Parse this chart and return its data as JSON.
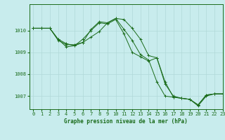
{
  "title": "Graphe pression niveau de la mer (hPa)",
  "background_color": "#c8eced",
  "grid_color": "#b0d8d8",
  "line_color": "#1a6b1a",
  "xlim": [
    -0.5,
    23
  ],
  "ylim": [
    1006.4,
    1011.2
  ],
  "yticks": [
    1007,
    1008,
    1009,
    1010
  ],
  "xticks": [
    0,
    1,
    2,
    3,
    4,
    5,
    6,
    7,
    8,
    9,
    10,
    11,
    12,
    13,
    14,
    15,
    16,
    17,
    18,
    19,
    20,
    21,
    22,
    23
  ],
  "series1": [
    [
      0,
      1010.1
    ],
    [
      1,
      1010.1
    ],
    [
      2,
      1010.1
    ],
    [
      3,
      1009.6
    ],
    [
      4,
      1009.25
    ],
    [
      5,
      1009.3
    ],
    [
      6,
      1009.45
    ],
    [
      7,
      1010.05
    ],
    [
      8,
      1010.4
    ],
    [
      9,
      1010.35
    ],
    [
      10,
      1010.55
    ],
    [
      11,
      1010.5
    ],
    [
      12,
      1010.1
    ],
    [
      13,
      1009.6
    ],
    [
      14,
      1008.85
    ],
    [
      15,
      1008.75
    ],
    [
      16,
      1007.65
    ],
    [
      17,
      1006.95
    ],
    [
      18,
      1006.9
    ],
    [
      19,
      1006.85
    ],
    [
      20,
      1006.55
    ],
    [
      21,
      1007.0
    ],
    [
      22,
      1007.1
    ],
    [
      23,
      1007.1
    ]
  ],
  "series2": [
    [
      0,
      1010.1
    ],
    [
      1,
      1010.1
    ],
    [
      2,
      1010.1
    ],
    [
      3,
      1009.55
    ],
    [
      4,
      1009.35
    ],
    [
      5,
      1009.35
    ],
    [
      6,
      1009.45
    ],
    [
      7,
      1009.7
    ],
    [
      8,
      1009.95
    ],
    [
      9,
      1010.35
    ],
    [
      10,
      1010.55
    ],
    [
      11,
      1010.05
    ],
    [
      12,
      1009.55
    ],
    [
      13,
      1008.9
    ],
    [
      14,
      1008.65
    ],
    [
      15,
      1007.65
    ],
    [
      16,
      1007.0
    ],
    [
      17,
      1006.95
    ],
    [
      18,
      1006.9
    ],
    [
      19,
      1006.85
    ],
    [
      20,
      1006.6
    ],
    [
      21,
      1007.05
    ],
    [
      22,
      1007.1
    ],
    [
      23,
      1007.1
    ]
  ],
  "series3": [
    [
      0,
      1010.1
    ],
    [
      1,
      1010.1
    ],
    [
      2,
      1010.1
    ],
    [
      3,
      1009.6
    ],
    [
      4,
      1009.4
    ],
    [
      5,
      1009.3
    ],
    [
      6,
      1009.6
    ],
    [
      7,
      1010.0
    ],
    [
      8,
      1010.35
    ],
    [
      9,
      1010.3
    ],
    [
      10,
      1010.5
    ],
    [
      11,
      1009.85
    ],
    [
      12,
      1009.0
    ],
    [
      13,
      1008.8
    ],
    [
      14,
      1008.6
    ],
    [
      15,
      1008.75
    ],
    [
      16,
      1007.55
    ],
    [
      17,
      1007.0
    ],
    [
      18,
      1006.9
    ],
    [
      19,
      1006.85
    ],
    [
      20,
      1006.6
    ],
    [
      21,
      1007.05
    ],
    [
      22,
      1007.1
    ],
    [
      23,
      1007.1
    ]
  ]
}
